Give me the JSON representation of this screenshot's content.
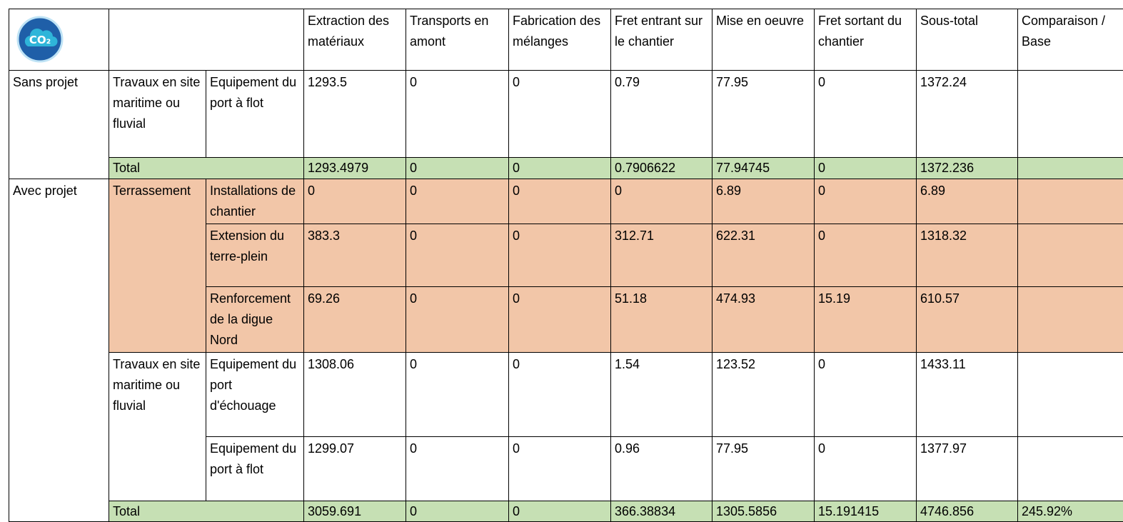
{
  "header": {
    "icon": "CO₂",
    "columns": [
      "Extraction des matériaux",
      "Transports en amont",
      "Fabrication des mélanges",
      "Fret entrant sur le chantier",
      "Mise en oeuvre",
      "Fret sortant du chantier",
      "Sous-total",
      "Comparaison / Base"
    ]
  },
  "sections": [
    {
      "label": "Sans projet",
      "groups": [
        {
          "label": "Travaux en site maritime ou fluvial",
          "items": [
            {
              "label": "Equipement du port à flot",
              "values": [
                1293.5,
                0,
                0,
                0.79,
                77.95,
                0,
                1372.24
              ]
            }
          ]
        }
      ],
      "total": {
        "label": "Total",
        "color": "#c6e0b4",
        "values": [
          1293.4979,
          0,
          0,
          0.7906622,
          77.94745,
          0,
          1372.236
        ]
      }
    },
    {
      "label": "Avec projet",
      "groups": [
        {
          "label": "Terrassement",
          "color": "#f2c6a8",
          "items": [
            {
              "label": "Installations de chantier",
              "values": [
                0,
                0,
                0,
                0,
                6.89,
                0,
                6.89
              ]
            },
            {
              "label": "Extension du terre-plein",
              "values": [
                383.3,
                0,
                0,
                312.71,
                622.31,
                0,
                1318.32
              ]
            },
            {
              "label": "Renforcement de la digue Nord",
              "values": [
                69.26,
                0,
                0,
                51.18,
                474.93,
                15.19,
                610.57
              ]
            }
          ]
        },
        {
          "label": "Travaux en site maritime ou fluvial",
          "items": [
            {
              "label": "Equipement du port d'échouage",
              "values": [
                1308.06,
                0,
                0,
                1.54,
                123.52,
                0,
                1433.11
              ]
            },
            {
              "label": "Equipement du port à flot",
              "values": [
                1299.07,
                0,
                0,
                0.96,
                77.95,
                0,
                1377.97
              ]
            }
          ]
        }
      ],
      "total": {
        "label": "Total",
        "color": "#c6e0b4",
        "values": [
          3059.691,
          0,
          0,
          366.38834,
          1305.5856,
          15.191415,
          4746.856
        ],
        "comparison": "245.92%"
      }
    }
  ]
}
